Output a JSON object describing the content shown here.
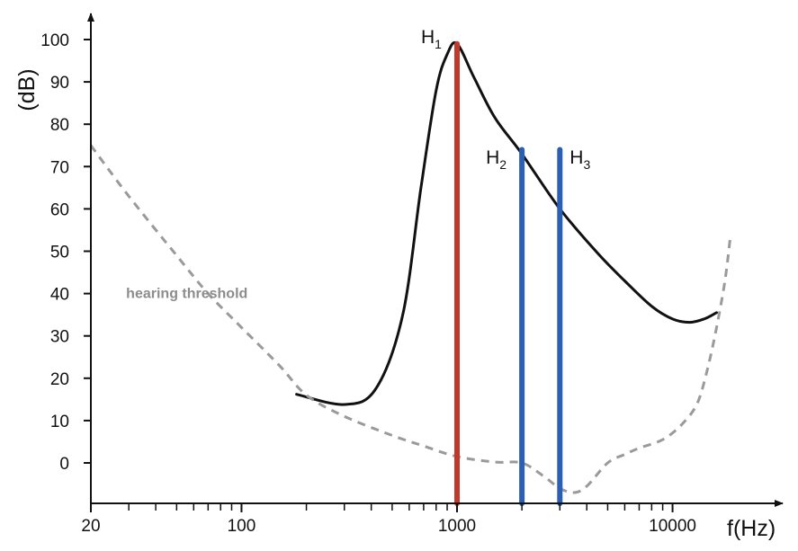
{
  "chart_data": {
    "type": "line",
    "xlabel": "f(Hz)",
    "ylabel": "(dB)",
    "xscale": "log",
    "xlim": [
      20,
      20000
    ],
    "ylim": [
      -10,
      100
    ],
    "x_tick_labels": [
      {
        "value": 20,
        "label": "20"
      },
      {
        "value": 100,
        "label": "100"
      },
      {
        "value": 1000,
        "label": "1000"
      },
      {
        "value": 10000,
        "label": "10000"
      }
    ],
    "x_minor_ticks": [
      30,
      40,
      50,
      60,
      70,
      80,
      90,
      200,
      300,
      400,
      500,
      600,
      700,
      800,
      900,
      2000,
      3000,
      4000,
      5000,
      6000,
      7000,
      8000,
      9000
    ],
    "y_ticks": [
      0,
      10,
      20,
      30,
      40,
      50,
      60,
      70,
      80,
      90,
      100
    ],
    "grid": false,
    "series": [
      {
        "style": "solid",
        "color": "#111111",
        "points": [
          [
            180,
            16.2
          ],
          [
            300,
            13.8
          ],
          [
            420,
            17.5
          ],
          [
            560,
            35
          ],
          [
            680,
            65
          ],
          [
            800,
            88
          ],
          [
            900,
            96.5
          ],
          [
            1000,
            99
          ],
          [
            1200,
            91
          ],
          [
            1500,
            81.5
          ],
          [
            2000,
            73
          ],
          [
            3000,
            60
          ],
          [
            4500,
            49.5
          ],
          [
            6000,
            43
          ],
          [
            8000,
            37
          ],
          [
            10000,
            34
          ],
          [
            12000,
            33.2
          ],
          [
            14000,
            34
          ],
          [
            16000,
            35.5
          ]
        ]
      },
      {
        "name": "hearing threshold",
        "style": "dashed",
        "color": "#9a9a9a",
        "points": [
          [
            20,
            75
          ],
          [
            30,
            63
          ],
          [
            50,
            49
          ],
          [
            70,
            40
          ],
          [
            100,
            32
          ],
          [
            150,
            23
          ],
          [
            200,
            16
          ],
          [
            300,
            11
          ],
          [
            500,
            6.5
          ],
          [
            700,
            4
          ],
          [
            1000,
            1.5
          ],
          [
            1500,
            0.2
          ],
          [
            2000,
            0
          ],
          [
            2500,
            -3
          ],
          [
            3000,
            -6
          ],
          [
            3500,
            -7
          ],
          [
            4000,
            -5.5
          ],
          [
            5000,
            0
          ],
          [
            6000,
            2
          ],
          [
            7000,
            3.5
          ],
          [
            9000,
            5.5
          ],
          [
            11000,
            9
          ],
          [
            13000,
            14
          ],
          [
            14500,
            22
          ],
          [
            16000,
            32
          ],
          [
            17500,
            43
          ],
          [
            18500,
            53
          ]
        ]
      }
    ],
    "harmonics": [
      {
        "letter": "H",
        "index": "1",
        "freq": 1000,
        "level": 99,
        "color": "#c0392b"
      },
      {
        "letter": "H",
        "index": "2",
        "freq": 2000,
        "level": 74,
        "color": "#2a5fb5"
      },
      {
        "letter": "H",
        "index": "3",
        "freq": 3000,
        "level": 74,
        "color": "#2a5fb5"
      }
    ],
    "annotations": [
      {
        "text": "hearing threshold",
        "x": 30,
        "y": 40
      }
    ]
  }
}
